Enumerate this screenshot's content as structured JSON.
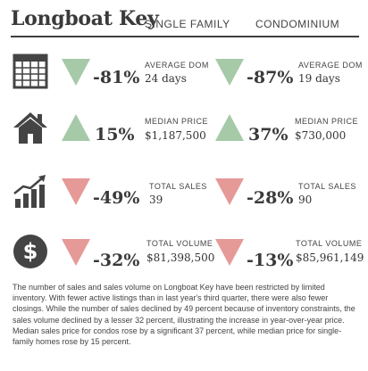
{
  "title": "Longboat Key",
  "headers": {
    "single_family": "SINGLE FAMILY",
    "condominium": "CONDOMINIUM"
  },
  "colors": {
    "up": "#a6c9a8",
    "down": "#e59a98",
    "icon": "#444444"
  },
  "rows": [
    {
      "icon": "calendar-icon",
      "sf": {
        "direction": "down",
        "pct": "-81%",
        "label": "AVERAGE DOM",
        "value": "24 days"
      },
      "condo": {
        "direction": "down",
        "pct": "-87%",
        "label": "AVERAGE DOM",
        "value": "19 days"
      }
    },
    {
      "icon": "house-icon",
      "sf": {
        "direction": "up",
        "pct": "15%",
        "label": "MEDIAN PRICE",
        "value": "$1,187,500"
      },
      "condo": {
        "direction": "up",
        "pct": "37%",
        "label": "MEDIAN PRICE",
        "value": "$730,000"
      }
    },
    {
      "icon": "bar-chart-icon",
      "sf": {
        "direction": "down",
        "pct": "-49%",
        "label": "TOTAL SALES",
        "value": "39"
      },
      "condo": {
        "direction": "down",
        "pct": "-28%",
        "label": "TOTAL SALES",
        "value": "90"
      }
    },
    {
      "icon": "dollar-icon",
      "sf": {
        "direction": "down",
        "pct": "-32%",
        "label": "TOTAL VOLUME",
        "value": "$81,398,500"
      },
      "condo": {
        "direction": "down",
        "pct": "-13%",
        "label": "TOTAL VOLUME",
        "value": "$85,961,149"
      }
    }
  ],
  "paragraph": "The number of sales and sales volume on Longboat Key have been restricted by limited inventory. With fewer active listings than in last year's third quarter, there were also fewer closings. While the number of sales declined by 49 percent because of inventory constraints, the sales volume declined by a lesser 32 percent, illustrating the increase in year-over-year price. Median sales price for condos rose by a significant 37 percent, while median price for single-family homes rose by 15 percent."
}
